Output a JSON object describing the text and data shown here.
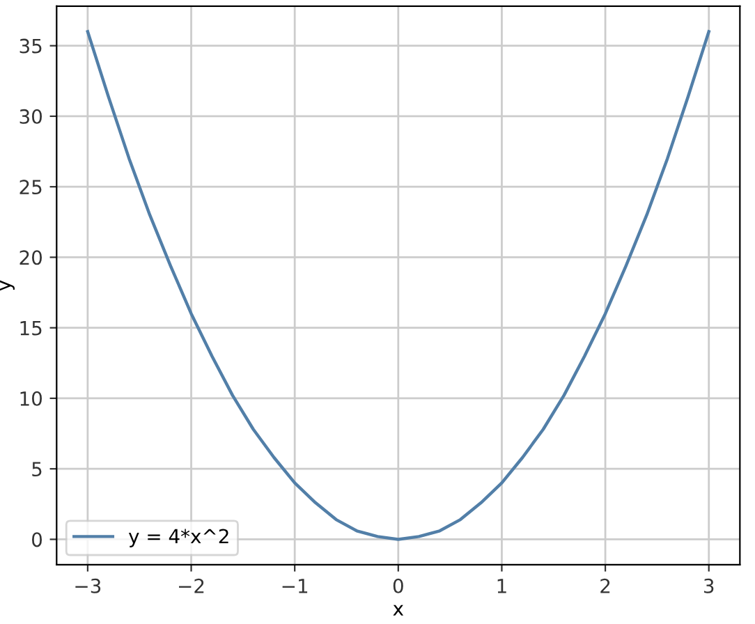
{
  "chart_data": {
    "type": "line",
    "xlabel": "x",
    "ylabel": "y",
    "x": [
      -3.0,
      -2.8,
      -2.6,
      -2.4,
      -2.2,
      -2.0,
      -1.8,
      -1.6,
      -1.4,
      -1.2,
      -1.0,
      -0.8,
      -0.6,
      -0.4,
      -0.2,
      0.0,
      0.2,
      0.4,
      0.6,
      0.8,
      1.0,
      1.2,
      1.4,
      1.6,
      1.8,
      2.0,
      2.2,
      2.4,
      2.6,
      2.8,
      3.0
    ],
    "series": [
      {
        "name": "y = 4*x^2",
        "color": "#527fa8",
        "values": [
          36.0,
          31.4,
          27.0,
          23.0,
          19.4,
          16.0,
          13.0,
          10.2,
          7.8,
          5.8,
          4.0,
          2.6,
          1.4,
          0.6,
          0.2,
          0.0,
          0.2,
          0.6,
          1.4,
          2.6,
          4.0,
          5.8,
          7.8,
          10.2,
          13.0,
          16.0,
          19.4,
          23.0,
          27.0,
          31.4,
          36.0
        ]
      }
    ],
    "xlim": [
      -3.3,
      3.3
    ],
    "ylim": [
      -1.8,
      37.8
    ],
    "xticks": [
      {
        "value": -3,
        "label": "−3"
      },
      {
        "value": -2,
        "label": "−2"
      },
      {
        "value": -1,
        "label": "−1"
      },
      0,
      1,
      2,
      3
    ],
    "yticks": [
      0,
      5,
      10,
      15,
      20,
      25,
      30,
      35
    ],
    "grid": true,
    "legend": "bottom left",
    "line_style": "solid",
    "marker": "none"
  }
}
